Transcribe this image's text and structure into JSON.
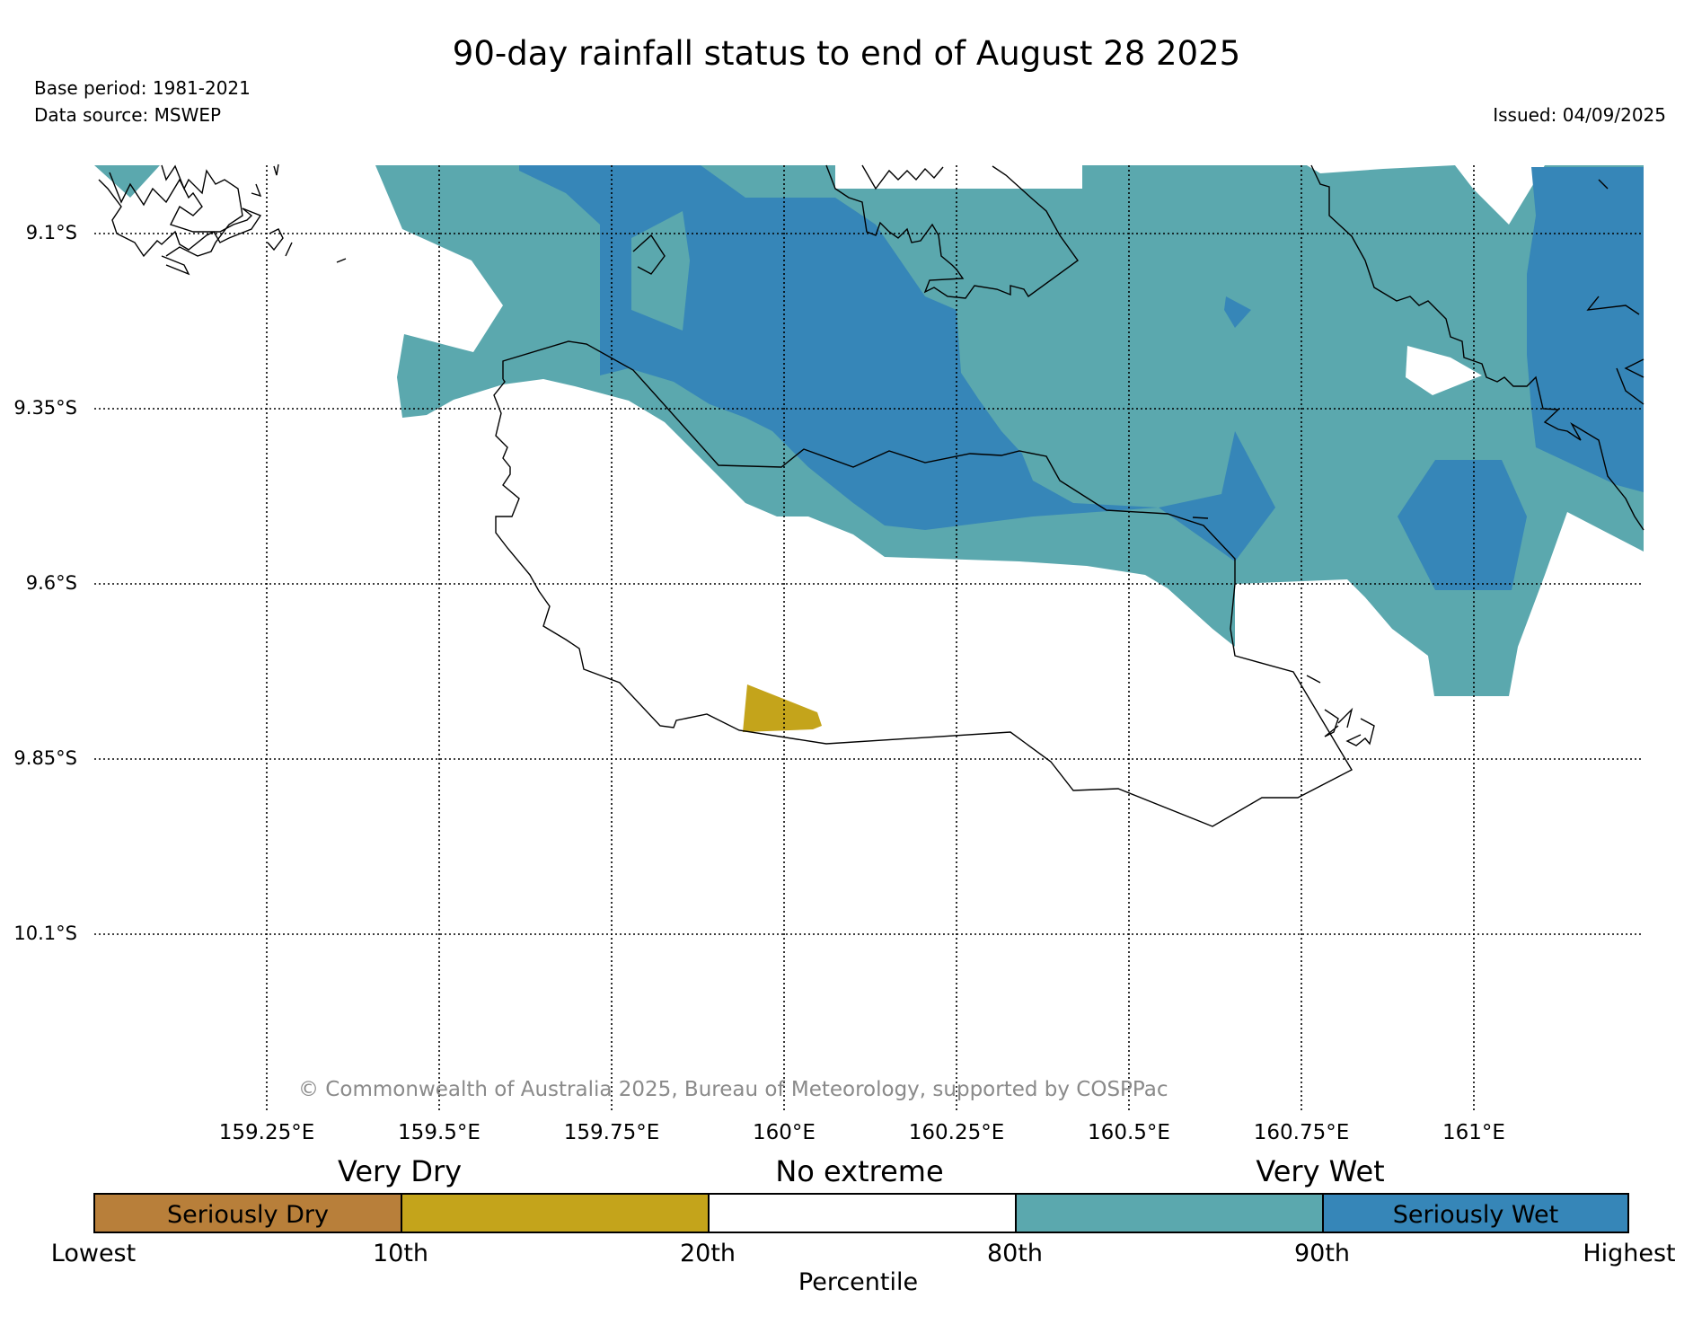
{
  "title": "90-day rainfall status to end of August 28 2025",
  "base_period": "Base period: 1981-2021",
  "data_source": "Data source: MSWEP",
  "issued": "Issued: 04/09/2025",
  "copyright": "© Commonwealth of Australia 2025, Bureau of Meteorology, supported by COSPPac",
  "map": {
    "lat_labels": [
      "9.1°S",
      "9.35°S",
      "9.6°S",
      "9.85°S",
      "10.1°S"
    ],
    "lon_labels": [
      "159.25°E",
      "159.5°E",
      "159.75°E",
      "160°E",
      "160.25°E",
      "160.5°E",
      "160.75°E",
      "161°E"
    ]
  },
  "legend": {
    "categories": [
      "Very Dry",
      "No extreme",
      "Very Wet"
    ],
    "segments": [
      {
        "label": "Seriously Dry",
        "color": "#b87f3a"
      },
      {
        "label": "",
        "color": "#c4a41b"
      },
      {
        "label": "",
        "color": "#ffffff"
      },
      {
        "label": "",
        "color": "#5ba8ae"
      },
      {
        "label": "Seriously Wet",
        "color": "#3686b8"
      }
    ],
    "ticks": [
      "Lowest",
      "10th",
      "20th",
      "80th",
      "90th",
      "Highest"
    ],
    "axis_label": "Percentile"
  },
  "colors": {
    "very_wet": "#5ba8ae",
    "seriously_wet": "#3686b8",
    "very_dry": "#c4a41b",
    "seriously_dry": "#b87f3a"
  }
}
